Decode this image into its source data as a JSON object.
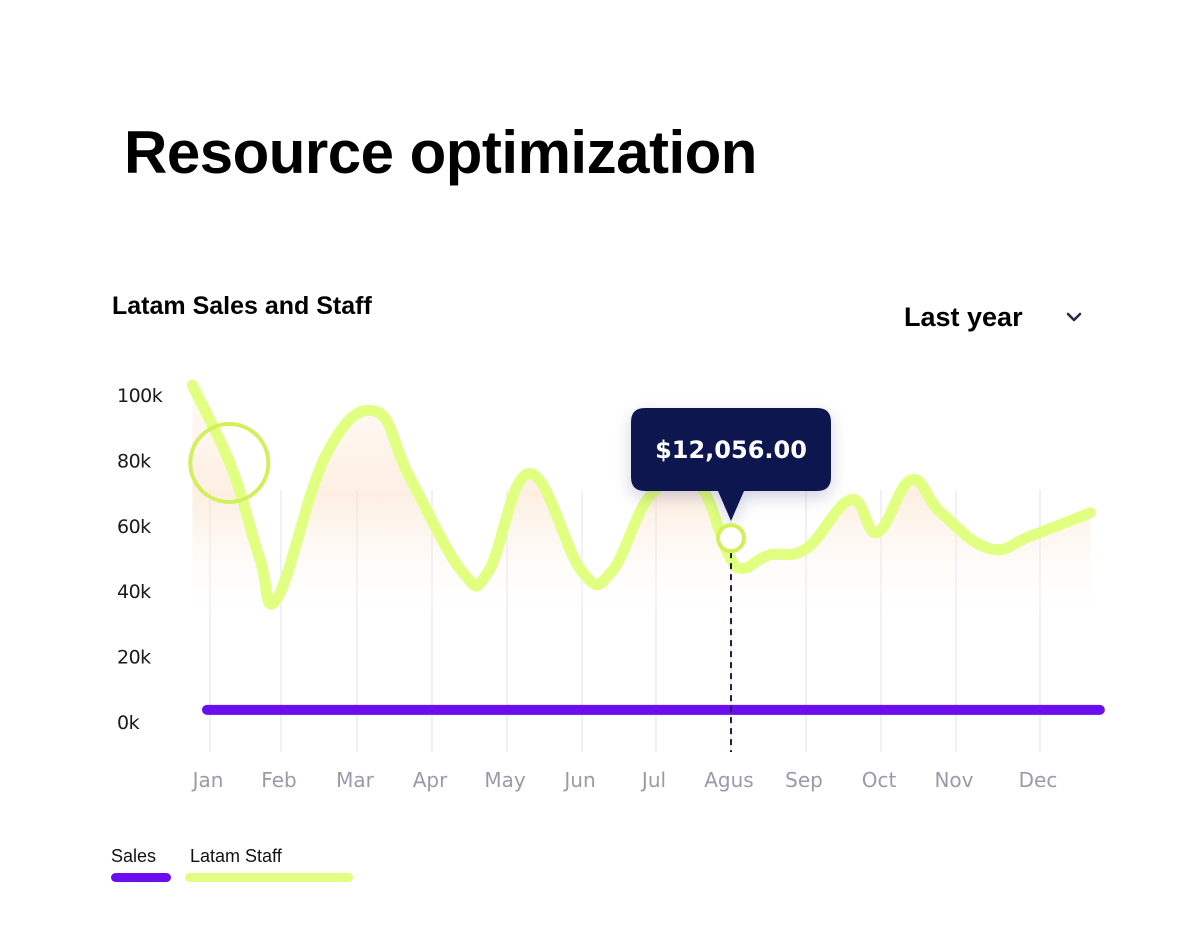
{
  "page": {
    "title": "Resource optimization"
  },
  "header": {
    "chart_title": "Latam Sales and Staff",
    "period_selected": "Last year"
  },
  "colors": {
    "sales": "#6a0ef0",
    "staff": "#e1ff80",
    "staff_marker": "#d2f05a",
    "tooltip_bg": "#0e1550",
    "tooltip_text": "#ffffff",
    "axis_text": "#1a1a1a",
    "month_text": "#9a9aaa",
    "grid": "#ececf2",
    "area_fill": "#fbe4cf",
    "chevron": "#2a2a45"
  },
  "chart_data": {
    "type": "line",
    "title": "Latam Sales and Staff",
    "categories": [
      "Jan",
      "Feb",
      "Mar",
      "Apr",
      "May",
      "Jun",
      "Jul",
      "Agus",
      "Sep",
      "Oct",
      "Nov",
      "Dec"
    ],
    "y_ticks": [
      "100k",
      "80k",
      "60k",
      "40k",
      "20k",
      "0k"
    ],
    "ylim": [
      0,
      100000
    ],
    "grid": "vertical",
    "series": [
      {
        "name": "Sales",
        "color": "#6a0ef0",
        "x": [
          0,
          11.7
        ],
        "values": [
          8000,
          8000
        ]
      },
      {
        "name": "Latam Staff",
        "color": "#e1ff80",
        "x": [
          -0.25,
          0.3,
          0.7,
          0.95,
          1.6,
          2.25,
          2.7,
          3.4,
          3.75,
          4.3,
          5.0,
          5.4,
          5.95,
          6.55,
          6.95,
          7.15,
          7.5,
          8.0,
          8.6,
          8.95,
          9.4,
          9.8,
          10.4,
          10.9,
          11.6
        ],
        "values": [
          103000,
          78000,
          50000,
          38000,
          82000,
          95000,
          75000,
          46000,
          46000,
          76000,
          46000,
          46000,
          70000,
          73000,
          52000,
          47000,
          51000,
          53000,
          68000,
          58000,
          74000,
          64000,
          53000,
          57000,
          64000
        ]
      }
    ],
    "tooltip": {
      "label": "$12,056.00",
      "month": "Agus",
      "x": 7.0,
      "value": 55000
    },
    "highlight_marker": {
      "x": 0.3,
      "value": 78000
    },
    "legend": [
      "Sales",
      "Latam Staff"
    ]
  }
}
